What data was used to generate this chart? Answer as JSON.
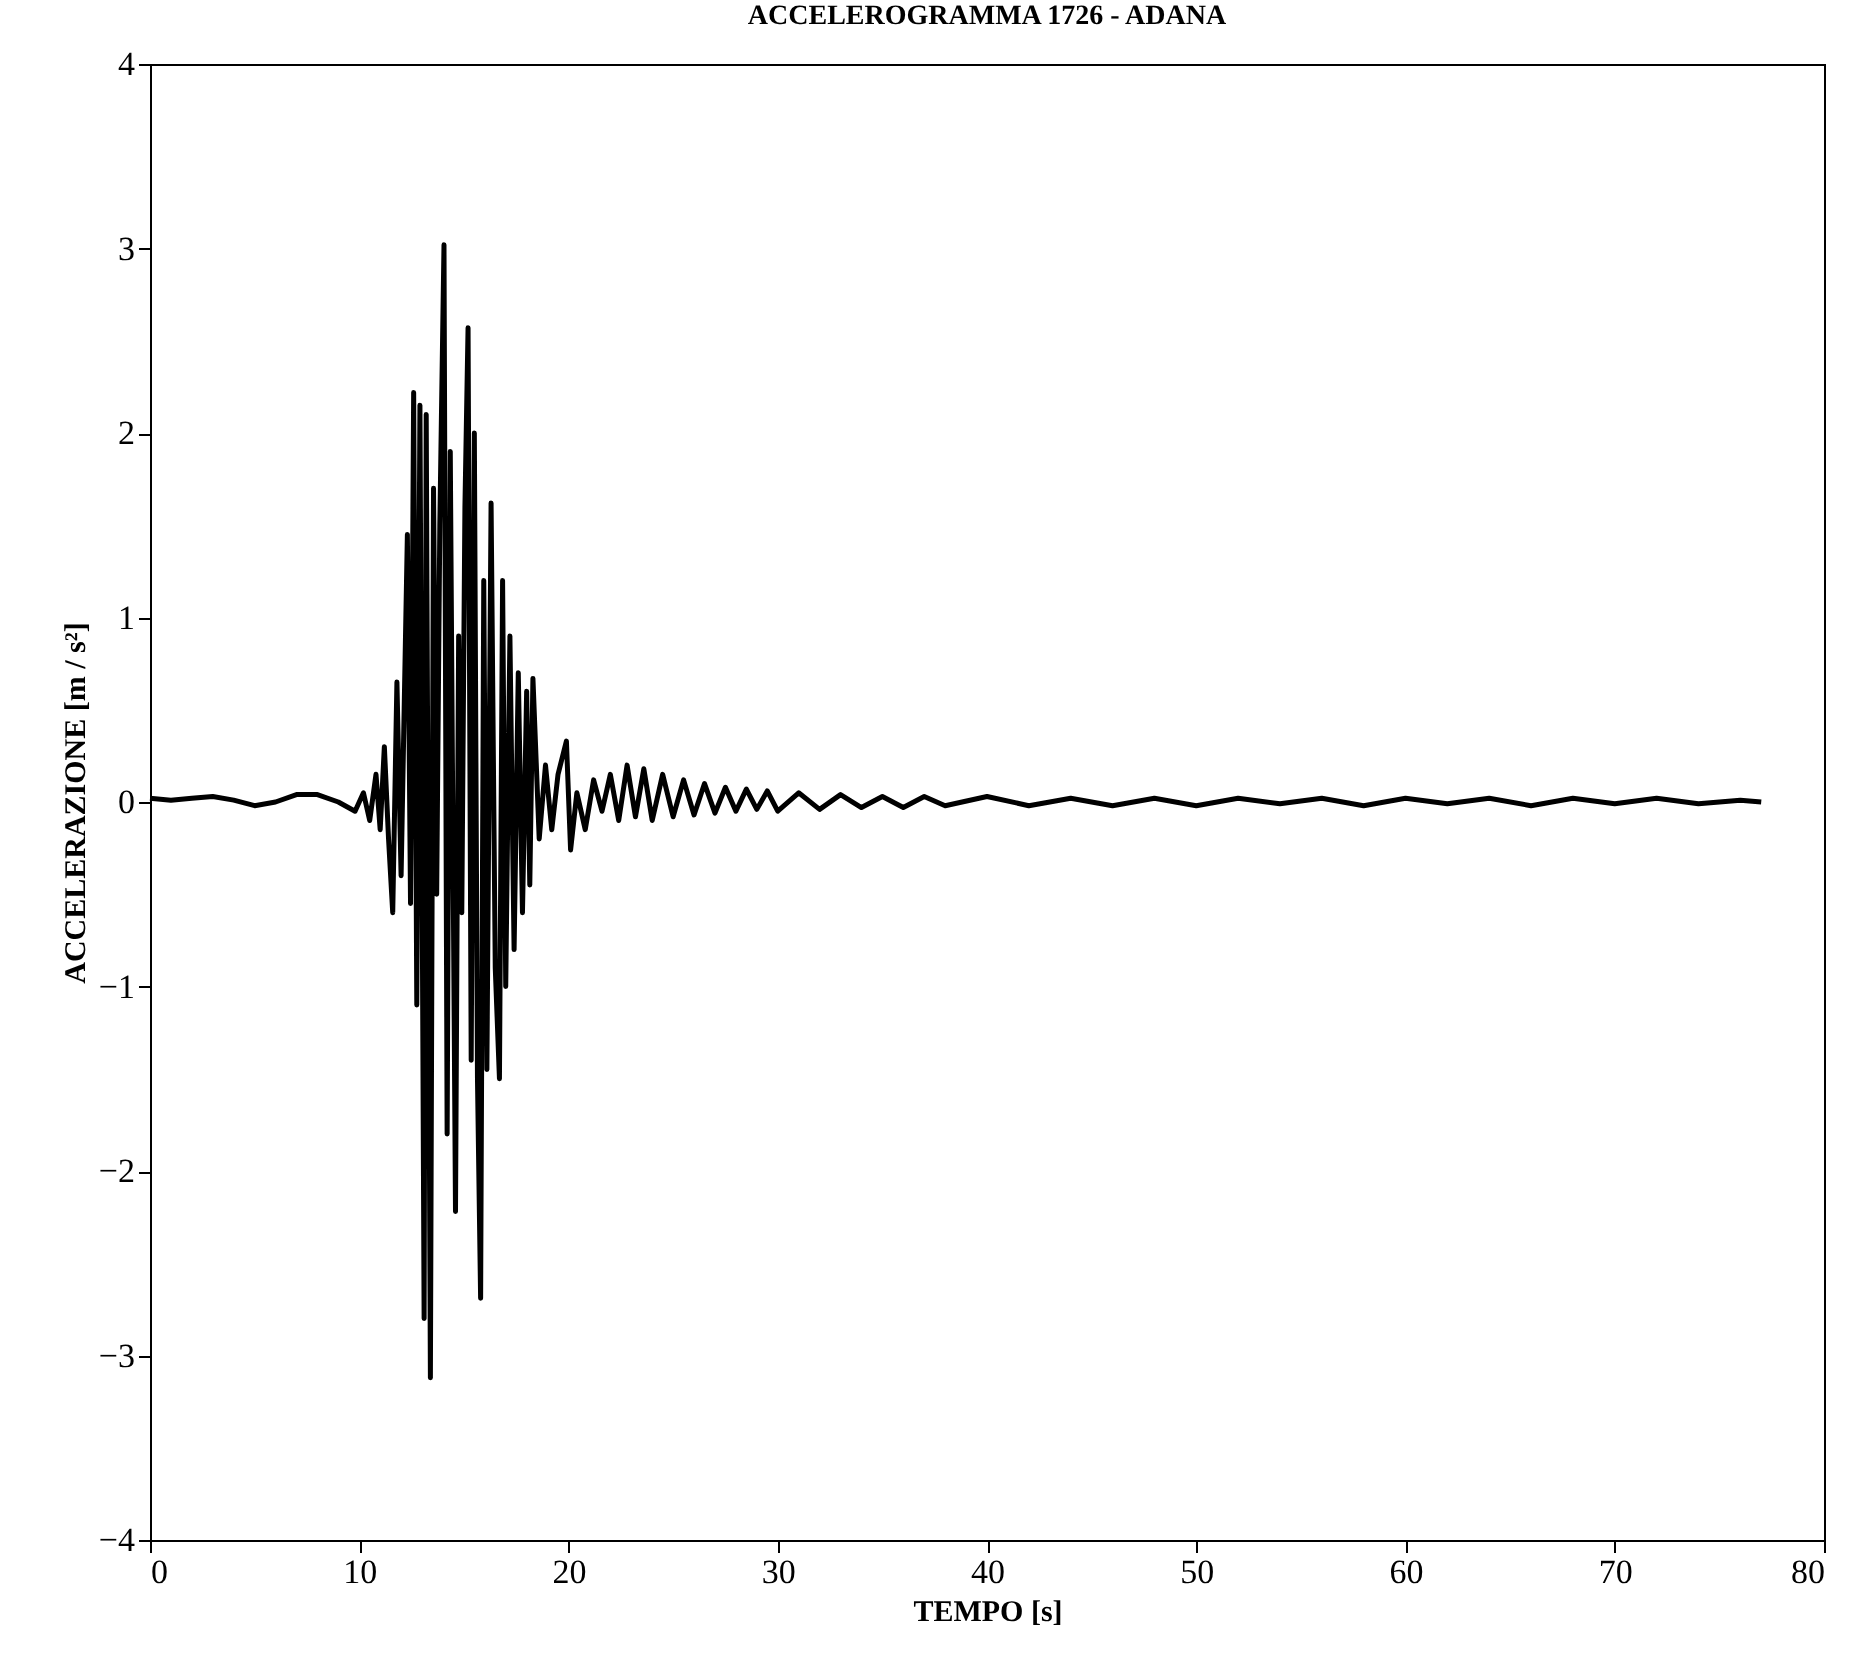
{
  "chart_data": {
    "type": "line",
    "title": "ACCELEROGRAMMA 1726 - ADANA",
    "xlabel": "TEMPO [s]",
    "ylabel": "ACCELERAZIONE [m / s²]",
    "xlim": [
      0,
      80
    ],
    "xticks": [
      0,
      10,
      20,
      30,
      40,
      50,
      60,
      70,
      80
    ],
    "ylim": [
      -4,
      4
    ],
    "yticks": [
      -4,
      -3,
      -2,
      -1,
      0,
      1,
      2,
      3,
      4
    ],
    "grid": false,
    "x": [
      0,
      1,
      2,
      3,
      4,
      5,
      6,
      7,
      8,
      9,
      9.8,
      10.2,
      10.5,
      10.8,
      11,
      11.2,
      11.4,
      11.6,
      11.8,
      12,
      12.3,
      12.45,
      12.6,
      12.75,
      12.9,
      13.1,
      13.2,
      13.4,
      13.55,
      13.7,
      13.85,
      14.05,
      14.2,
      14.35,
      14.6,
      14.75,
      14.9,
      15.05,
      15.2,
      15.35,
      15.5,
      15.65,
      15.8,
      15.95,
      16.1,
      16.3,
      16.5,
      16.7,
      16.85,
      17,
      17.2,
      17.4,
      17.6,
      17.8,
      18,
      18.15,
      18.3,
      18.6,
      18.9,
      19.2,
      19.5,
      19.9,
      20.1,
      20.4,
      20.8,
      21.2,
      21.6,
      22,
      22.4,
      22.8,
      23.2,
      23.6,
      24,
      24.5,
      25,
      25.5,
      26,
      26.5,
      27,
      27.5,
      28,
      28.5,
      29,
      29.5,
      30,
      31,
      32,
      33,
      34,
      35,
      36,
      37,
      38,
      40,
      42,
      44,
      46,
      48,
      50,
      52,
      54,
      56,
      58,
      60,
      62,
      64,
      66,
      68,
      70,
      72,
      74,
      76,
      77
    ],
    "series": [
      {
        "color": "#000000",
        "values": [
          0.02,
          0.01,
          0.02,
          0.03,
          0.01,
          -0.02,
          0,
          0.04,
          0.04,
          0,
          -0.05,
          0.05,
          -0.1,
          0.15,
          -0.15,
          0.3,
          -0.2,
          -0.6,
          0.65,
          -0.4,
          1.45,
          -0.55,
          2.22,
          -1.1,
          2.15,
          -2.8,
          2.1,
          -3.12,
          1.7,
          -0.5,
          1.5,
          3.02,
          -1.8,
          1.9,
          -2.22,
          0.9,
          -0.6,
          1.6,
          2.57,
          -1.4,
          2,
          -1.5,
          -2.69,
          1.2,
          -1.45,
          1.62,
          -0.9,
          -1.5,
          1.2,
          -1,
          0.9,
          -0.8,
          0.7,
          -0.6,
          0.6,
          -0.45,
          0.67,
          -0.2,
          0.2,
          -0.15,
          0.15,
          0.33,
          -0.26,
          0.05,
          -0.15,
          0.12,
          -0.05,
          0.15,
          -0.1,
          0.2,
          -0.08,
          0.18,
          -0.1,
          0.15,
          -0.08,
          0.12,
          -0.07,
          0.1,
          -0.06,
          0.08,
          -0.05,
          0.07,
          -0.04,
          0.06,
          -0.05,
          0.05,
          -0.04,
          0.04,
          -0.03,
          0.03,
          -0.03,
          0.03,
          -0.02,
          0.03,
          -0.02,
          0.02,
          -0.02,
          0.02,
          -0.02,
          0.02,
          -0.01,
          0.02,
          -0.02,
          0.02,
          -0.01,
          0.02,
          -0.02,
          0.02,
          -0.01,
          0.02,
          -0.01,
          0.01,
          0
        ]
      }
    ]
  }
}
